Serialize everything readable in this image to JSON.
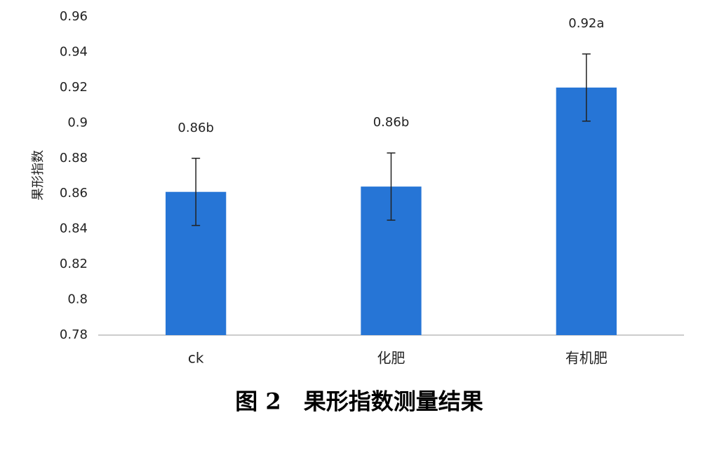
{
  "chart_data": {
    "type": "bar",
    "caption": "图 2　果形指数测量结果",
    "ylabel": "果形指数",
    "categories": [
      "ck",
      "化肥",
      "有机肥"
    ],
    "values": [
      0.861,
      0.864,
      0.92
    ],
    "value_labels": [
      "0.86b",
      "0.86b",
      "0.92a"
    ],
    "errors": [
      0.019,
      0.019,
      0.019
    ],
    "color": "#2675d6",
    "ylim": [
      0.78,
      0.96
    ],
    "yticks": [
      0.78,
      0.8,
      0.82,
      0.84,
      0.86,
      0.88,
      0.9,
      0.92,
      0.94,
      0.96
    ],
    "grid": false
  }
}
